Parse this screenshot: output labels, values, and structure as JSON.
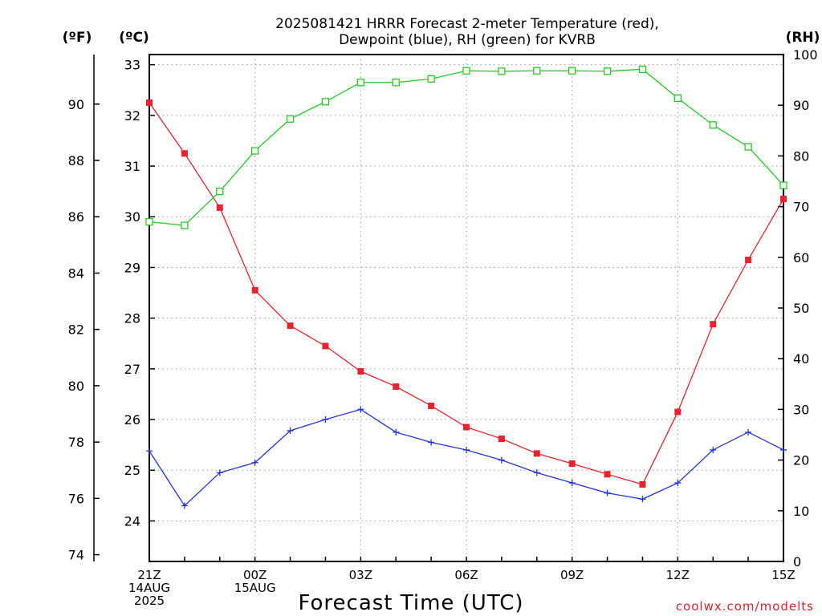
{
  "chart_data": {
    "type": "line",
    "title_lines": [
      "2025081421 HRRR Forecast 2-meter Temperature (red),",
      "Dewpoint (blue), RH (green) for KVRB"
    ],
    "xlabel": "Forecast Time (UTC)",
    "credit": "coolwx.com/modelts",
    "units": {
      "fahrenheit": "(ºF)",
      "celsius": "(ºC)",
      "rh": "(RH)"
    },
    "x": [
      0,
      1,
      2,
      3,
      4,
      5,
      6,
      7,
      8,
      9,
      10,
      11,
      12,
      13,
      14,
      15,
      16,
      17,
      18
    ],
    "x_range": [
      0,
      18
    ],
    "x_ticks": [
      {
        "x": 0,
        "lines": [
          "21Z",
          "14AUG",
          "2025"
        ]
      },
      {
        "x": 3,
        "lines": [
          "00Z",
          "15AUG"
        ]
      },
      {
        "x": 6,
        "lines": [
          "03Z"
        ]
      },
      {
        "x": 9,
        "lines": [
          "06Z"
        ]
      },
      {
        "x": 12,
        "lines": [
          "09Z"
        ]
      },
      {
        "x": 15,
        "lines": [
          "12Z"
        ]
      },
      {
        "x": 18,
        "lines": [
          "15Z"
        ]
      }
    ],
    "celsius_axis": {
      "range": [
        23.2,
        33.2
      ],
      "ticks": [
        24,
        25,
        26,
        27,
        28,
        29,
        30,
        31,
        32,
        33
      ]
    },
    "fahrenheit_ticks": [
      74,
      76,
      78,
      80,
      82,
      84,
      86,
      88,
      90
    ],
    "rh_axis": {
      "range": [
        0,
        100
      ],
      "ticks": [
        0,
        10,
        20,
        30,
        40,
        50,
        60,
        70,
        80,
        90,
        100
      ]
    },
    "grid": true,
    "colors": {
      "temperature": "#e8222e",
      "dewpoint": "#2233dd",
      "rh": "#22cc22"
    },
    "series": [
      {
        "key": "temperature",
        "axis": "celsius",
        "marker": "square-filled",
        "values": [
          32.25,
          31.25,
          30.18,
          28.55,
          27.85,
          27.45,
          26.95,
          26.65,
          26.27,
          25.85,
          25.62,
          25.33,
          25.13,
          24.92,
          24.72,
          26.15,
          27.88,
          29.15,
          30.35
        ]
      },
      {
        "key": "dewpoint",
        "axis": "celsius",
        "marker": "plus",
        "values": [
          25.38,
          24.3,
          24.95,
          25.15,
          25.78,
          26.0,
          26.2,
          25.75,
          25.55,
          25.4,
          25.2,
          24.95,
          24.75,
          24.55,
          24.43,
          24.75,
          25.4,
          25.75,
          25.4
        ]
      },
      {
        "key": "rh",
        "axis": "rh",
        "marker": "square-open",
        "values": [
          67,
          66.3,
          73,
          81,
          87.3,
          90.7,
          94.5,
          94.5,
          95.2,
          96.8,
          96.7,
          96.8,
          96.8,
          96.7,
          97.1,
          91.4,
          86.1,
          81.8,
          74.2
        ]
      }
    ]
  }
}
